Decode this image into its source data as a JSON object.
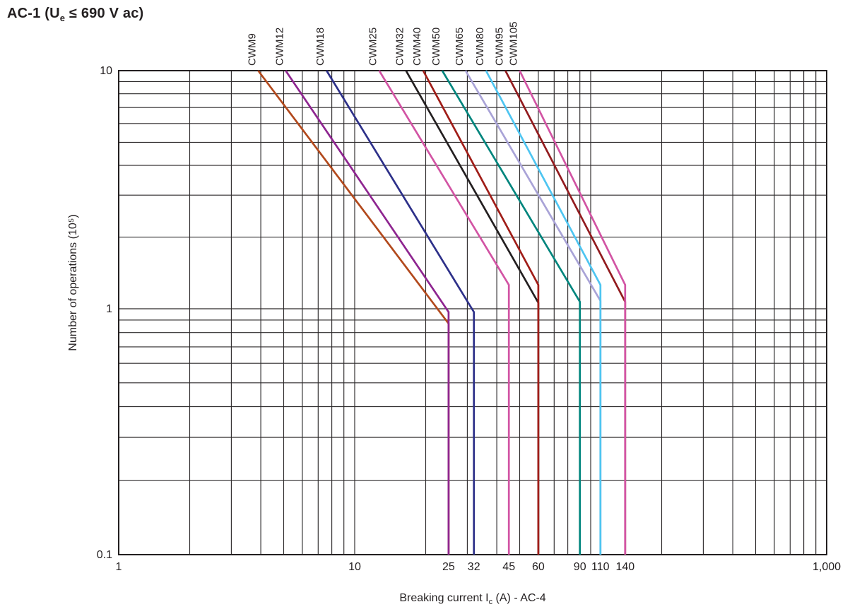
{
  "header": {
    "title_pre": "AC-1 (U",
    "title_sub": "e",
    "title_post": " ≤ 690 V ac)"
  },
  "chart_data": {
    "type": "line",
    "title": "AC-1 (Ue ≤ 690 V ac)",
    "grid": "on",
    "legend_position": "top-rotated-labels",
    "x_axis": {
      "scale": "log",
      "min": 1,
      "max": 1000,
      "label_pre": "Breaking current I",
      "label_sub": "c",
      "label_post": " (A) - AC-4",
      "ticks": [
        {
          "v": 1,
          "label": "1"
        },
        {
          "v": 10,
          "label": "10"
        },
        {
          "v": 25,
          "label": "25"
        },
        {
          "v": 32,
          "label": "32"
        },
        {
          "v": 45,
          "label": "45"
        },
        {
          "v": 60,
          "label": "60"
        },
        {
          "v": 90,
          "label": "90"
        },
        {
          "v": 110,
          "label": "110"
        },
        {
          "v": 140,
          "label": "140"
        },
        {
          "v": 1000,
          "label": "1,000"
        }
      ]
    },
    "y_axis": {
      "scale": "log",
      "min": 0.1,
      "max": 10,
      "label": "Number of operations (10⁵)",
      "ticks": [
        {
          "v": 10,
          "label": "10"
        },
        {
          "v": 1,
          "label": "1"
        },
        {
          "v": 0.1,
          "label": "0.1"
        }
      ]
    },
    "series": [
      {
        "name": "CWM9",
        "color": "#b2491c",
        "breaking_current": 25,
        "points": [
          [
            3.9,
            10
          ],
          [
            25,
            0.87
          ],
          [
            25,
            0.1
          ]
        ]
      },
      {
        "name": "CWM12",
        "color": "#8e2590",
        "breaking_current": 25,
        "points": [
          [
            5.1,
            10
          ],
          [
            25,
            0.97
          ],
          [
            25,
            0.1
          ]
        ]
      },
      {
        "name": "CWM18",
        "color": "#2d3089",
        "breaking_current": 32,
        "points": [
          [
            7.6,
            10
          ],
          [
            32,
            0.97
          ],
          [
            32,
            0.1
          ]
        ]
      },
      {
        "name": "CWM25",
        "color": "#d254a4",
        "breaking_current": 45,
        "points": [
          [
            12.7,
            10
          ],
          [
            45,
            1.26
          ],
          [
            45,
            0.1
          ]
        ]
      },
      {
        "name": "CWM32",
        "color": "#231f20",
        "breaking_current": 60,
        "points": [
          [
            16.5,
            10
          ],
          [
            60,
            1.06
          ],
          [
            60,
            0.1
          ]
        ]
      },
      {
        "name": "CWM40",
        "color": "#a01d18",
        "breaking_current": 60,
        "points": [
          [
            19.5,
            10
          ],
          [
            60,
            1.26
          ],
          [
            60,
            0.1
          ]
        ]
      },
      {
        "name": "CWM50",
        "color": "#00857d",
        "breaking_current": 90,
        "points": [
          [
            23.5,
            10
          ],
          [
            90,
            1.07
          ],
          [
            90,
            0.1
          ]
        ]
      },
      {
        "name": "CWM65",
        "color": "#a9a3d7",
        "breaking_current": 110,
        "points": [
          [
            29.5,
            10
          ],
          [
            110,
            1.08
          ],
          [
            110,
            0.1
          ]
        ]
      },
      {
        "name": "CWM80",
        "color": "#4ec5f1",
        "breaking_current": 110,
        "points": [
          [
            36,
            10
          ],
          [
            110,
            1.26
          ],
          [
            110,
            0.1
          ]
        ]
      },
      {
        "name": "CWM95",
        "color": "#921b1e",
        "breaking_current": 140,
        "points": [
          [
            43.5,
            10
          ],
          [
            140,
            1.07
          ],
          [
            140,
            0.1
          ]
        ]
      },
      {
        "name": "CWM105",
        "color": "#d254a4",
        "breaking_current": 140,
        "points": [
          [
            50,
            10
          ],
          [
            140,
            1.26
          ],
          [
            140,
            0.1
          ]
        ]
      }
    ]
  }
}
